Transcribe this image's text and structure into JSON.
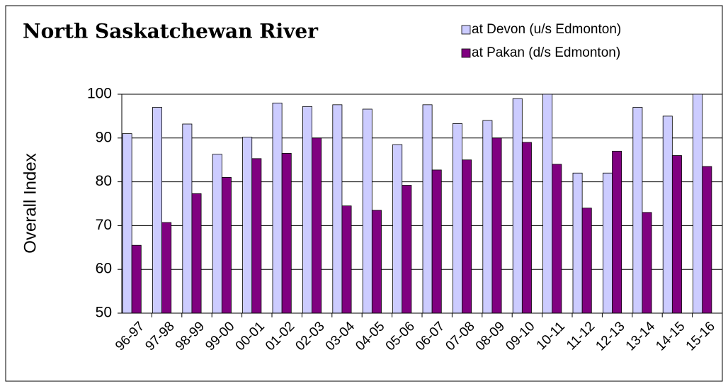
{
  "chart_data": {
    "type": "bar",
    "title": "North Saskatchewan River",
    "y_label": "Overall Index",
    "categories": [
      "96-97",
      "97-98",
      "98-99",
      "99-00",
      "00-01",
      "01-02",
      "02-03",
      "03-04",
      "04-05",
      "05-06",
      "06-07",
      "07-08",
      "08-09",
      "09-10",
      "10-11",
      "11-12",
      "12-13",
      "13-14",
      "14-15",
      "15-16"
    ],
    "series": [
      {
        "name": "at Devon (u/s Edmonton)",
        "color": "#ccccff",
        "values": [
          91,
          97,
          93.2,
          86.3,
          90.2,
          98,
          97.2,
          97.6,
          96.6,
          88.5,
          97.6,
          93.3,
          94,
          99,
          100,
          82,
          82,
          97,
          95,
          100
        ]
      },
      {
        "name": "at Pakan (d/s Edmonton)",
        "color": "#800080",
        "values": [
          65.5,
          70.7,
          77.3,
          81,
          85.3,
          86.5,
          90,
          74.5,
          73.5,
          79.2,
          82.7,
          85,
          90,
          89,
          84,
          74,
          87,
          73,
          86,
          83.5
        ]
      }
    ],
    "ylim": [
      50,
      100
    ],
    "yticks": [
      50,
      60,
      70,
      80,
      90,
      100
    ],
    "grid": true,
    "legend": "top-right"
  }
}
